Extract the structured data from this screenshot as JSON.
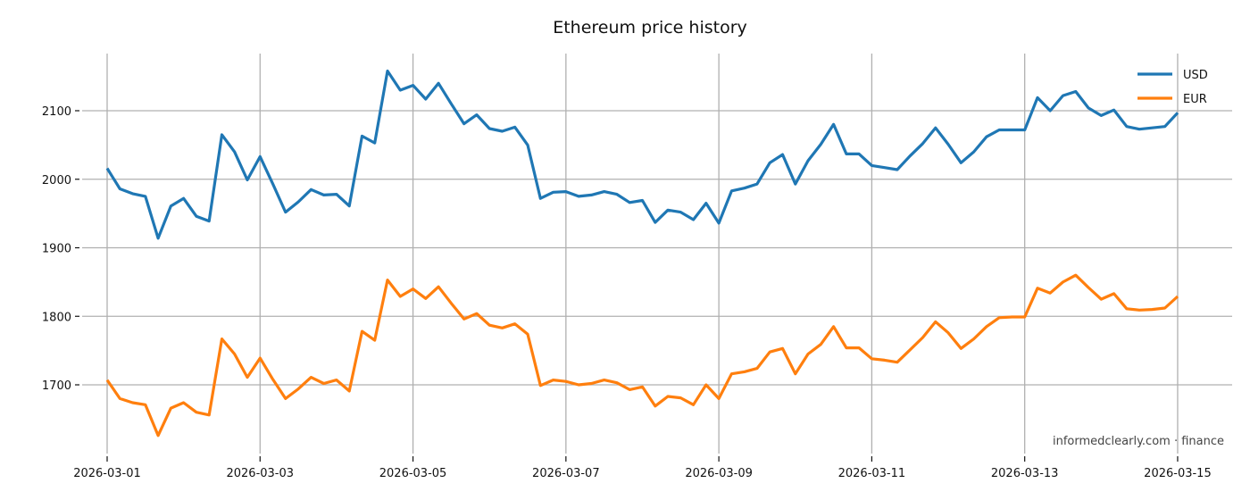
{
  "chart_data": {
    "type": "line",
    "title": "Ethereum price history",
    "xlabel": "",
    "ylabel": "",
    "grid": true,
    "legend_position": "upper right",
    "x_ticks": [
      "2026-03-01",
      "2026-03-03",
      "2026-03-05",
      "2026-03-07",
      "2026-03-09",
      "2026-03-11",
      "2026-03-13",
      "2026-03-15"
    ],
    "y_ticks": [
      1700,
      1800,
      1900,
      2000,
      2100
    ],
    "ylim": [
      1604,
      2184
    ],
    "x_start": "2026-03-01 04:00",
    "x_end": "2026-03-15 00:00",
    "x_step_hours": 4,
    "series": [
      {
        "name": "USD",
        "color": "#1f77b4",
        "values": [
          2016,
          1986,
          1979,
          1975,
          1914,
          1961,
          1972,
          1946,
          1939,
          2065,
          2040,
          1999,
          2033,
          1993,
          1952,
          1967,
          1985,
          1977,
          1978,
          1961,
          2063,
          2053,
          2158,
          2130,
          2137,
          2117,
          2140,
          2110,
          2081,
          2094,
          2074,
          2070,
          2076,
          2050,
          1972,
          1981,
          1982,
          1975,
          1977,
          1982,
          1978,
          1966,
          1969,
          1937,
          1955,
          1952,
          1941,
          1965,
          1936,
          1983,
          1987,
          1993,
          2024,
          2036,
          1993,
          2027,
          2051,
          2080,
          2037,
          2037,
          2020,
          2017,
          2014,
          2034,
          2052,
          2075,
          2051,
          2024,
          2040,
          2062,
          2072,
          2072,
          2072,
          2119,
          2100,
          2122,
          2128,
          2104,
          2093,
          2101,
          2077,
          2073,
          2075,
          2077,
          2097
        ]
      },
      {
        "name": "EUR",
        "color": "#ff7f0e",
        "values": [
          1707,
          1680,
          1674,
          1671,
          1626,
          1666,
          1674,
          1660,
          1656,
          1767,
          1745,
          1711,
          1739,
          1708,
          1680,
          1694,
          1711,
          1702,
          1707,
          1691,
          1778,
          1765,
          1853,
          1829,
          1840,
          1826,
          1843,
          1819,
          1796,
          1804,
          1787,
          1783,
          1789,
          1774,
          1699,
          1707,
          1705,
          1700,
          1702,
          1707,
          1703,
          1693,
          1697,
          1669,
          1683,
          1681,
          1671,
          1700,
          1680,
          1716,
          1719,
          1724,
          1748,
          1753,
          1716,
          1745,
          1759,
          1785,
          1754,
          1754,
          1738,
          1736,
          1733,
          1751,
          1769,
          1792,
          1776,
          1753,
          1767,
          1785,
          1798,
          1799,
          1799,
          1841,
          1834,
          1850,
          1860,
          1842,
          1825,
          1833,
          1811,
          1809,
          1810,
          1812,
          1829
        ]
      }
    ]
  },
  "watermark": "informedclearly.com · finance"
}
